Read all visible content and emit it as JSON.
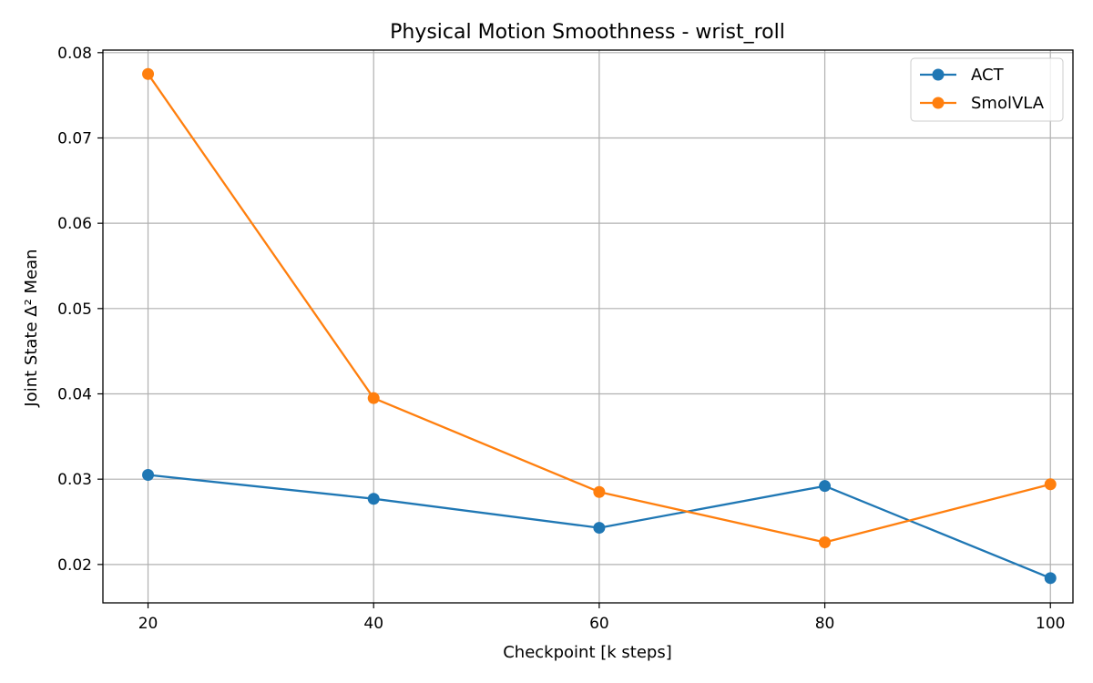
{
  "chart_data": {
    "type": "line",
    "title": "Physical Motion Smoothness - wrist_roll",
    "xlabel": "Checkpoint [k steps]",
    "ylabel": "Joint State Δ² Mean",
    "x": [
      20,
      40,
      60,
      80,
      100
    ],
    "xticks": [
      "20",
      "40",
      "60",
      "80",
      "100"
    ],
    "yticks": [
      "0.02",
      "0.03",
      "0.04",
      "0.05",
      "0.06",
      "0.07",
      "0.08"
    ],
    "xlim": [
      16,
      102
    ],
    "ylim": [
      0.0155,
      0.0803
    ],
    "grid": true,
    "legend_position": "top-right",
    "series": [
      {
        "name": "ACT",
        "color": "#1f77b4",
        "values": [
          0.0305,
          0.0277,
          0.0243,
          0.0292,
          0.0184
        ]
      },
      {
        "name": "SmolVLA",
        "color": "#ff7f0e",
        "values": [
          0.0775,
          0.0395,
          0.0285,
          0.0226,
          0.0294
        ]
      }
    ]
  }
}
